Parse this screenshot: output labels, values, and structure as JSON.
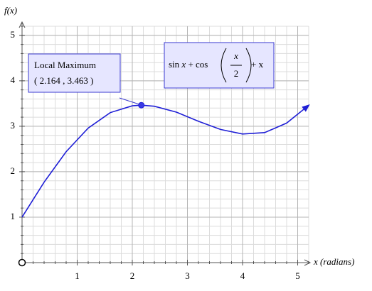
{
  "chart_data": {
    "type": "line",
    "x_label": "x (radians)",
    "y_label": "f(x)",
    "series": [
      {
        "color": "#1f1fd6",
        "x": [
          0,
          0.4,
          0.8,
          1.2,
          1.6,
          2.0,
          2.164,
          2.4,
          2.8,
          3.2,
          3.6,
          4.0,
          4.4,
          4.8,
          5.2
        ],
        "values": [
          1,
          1.77,
          2.44,
          2.96,
          3.3,
          3.45,
          3.463,
          3.44,
          3.31,
          3.11,
          2.93,
          2.83,
          2.86,
          3.07,
          3.46
        ]
      }
    ],
    "xlim": [
      0,
      5.2
    ],
    "ylim": [
      0,
      5.2
    ],
    "xticks": [
      1,
      2,
      3,
      4,
      5
    ],
    "yticks": [
      1,
      2,
      3,
      4,
      5
    ],
    "grid": true,
    "annotations": [
      {
        "title": "Local Maximum",
        "label": "( 2.164 , 3.463 )",
        "x": 2.164,
        "y": 3.463
      }
    ],
    "formula": {
      "lead": "sin",
      "var": "x",
      "op": "+ cos",
      "numerator": "x",
      "denominator": "2",
      "tail": "+ x"
    }
  }
}
